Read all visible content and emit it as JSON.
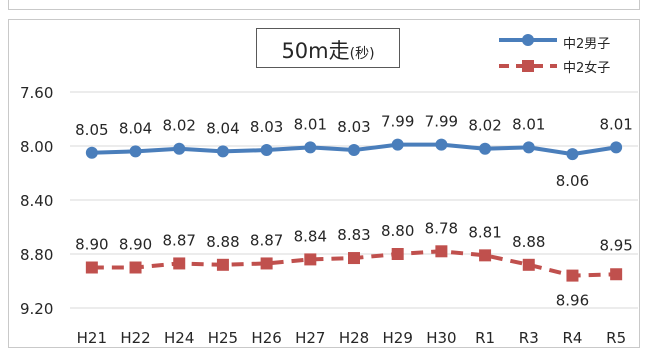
{
  "chart_data": {
    "type": "line",
    "title": "50m走",
    "title_suffix": "(秒)",
    "categories": [
      "H21",
      "H22",
      "H24",
      "H25",
      "H26",
      "H27",
      "H28",
      "H29",
      "H30",
      "R1",
      "R3",
      "R4",
      "R5"
    ],
    "y_tick_labels": [
      "7.60",
      "8.00",
      "8.40",
      "8.80",
      "9.20"
    ],
    "ylim": [
      7.6,
      9.3
    ],
    "y_inverted": true,
    "grid": true,
    "legend_position": "top-right",
    "series": [
      {
        "name": "中2男子",
        "values": [
          8.05,
          8.04,
          8.02,
          8.04,
          8.03,
          8.01,
          8.03,
          7.99,
          7.99,
          8.02,
          8.01,
          8.06,
          8.01
        ],
        "labels": [
          "8.05",
          "8.04",
          "8.02",
          "8.04",
          "8.03",
          "8.01",
          "8.03",
          "7.99",
          "7.99",
          "8.02",
          "8.01",
          "8.06",
          "8.01"
        ],
        "color": "#4a7ebb",
        "style": "solid",
        "marker": "circle"
      },
      {
        "name": "中2女子",
        "values": [
          8.9,
          8.9,
          8.87,
          8.88,
          8.87,
          8.84,
          8.83,
          8.8,
          8.78,
          8.81,
          8.88,
          8.96,
          8.95
        ],
        "labels": [
          "8.90",
          "8.90",
          "8.87",
          "8.88",
          "8.87",
          "8.84",
          "8.83",
          "8.80",
          "8.78",
          "8.81",
          "8.88",
          "8.96",
          "8.95"
        ],
        "color": "#c0504d",
        "style": "dashed",
        "marker": "square"
      }
    ]
  }
}
